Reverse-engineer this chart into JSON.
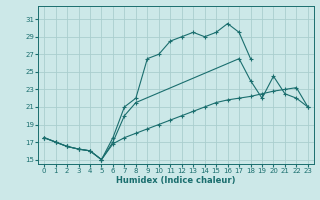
{
  "xlabel": "Humidex (Indice chaleur)",
  "ylabel": "",
  "bg_color": "#cce8e8",
  "grid_color": "#aacece",
  "line_color": "#1a6e6e",
  "xlim": [
    -0.5,
    23.5
  ],
  "ylim": [
    14.5,
    32.5
  ],
  "xticks": [
    0,
    1,
    2,
    3,
    4,
    5,
    6,
    7,
    8,
    9,
    10,
    11,
    12,
    13,
    14,
    15,
    16,
    17,
    18,
    19,
    20,
    21,
    22,
    23
  ],
  "yticks": [
    15,
    17,
    19,
    21,
    23,
    25,
    27,
    29,
    31
  ],
  "line1_x": [
    0,
    1,
    2,
    3,
    4,
    5,
    6,
    7,
    8,
    9,
    10,
    11,
    12,
    13,
    14,
    15,
    16,
    17,
    18,
    19,
    20,
    21,
    22,
    23
  ],
  "line1_y": [
    17.5,
    17.0,
    16.5,
    16.2,
    16.0,
    15.0,
    16.8,
    17.5,
    18.0,
    18.5,
    19.0,
    19.5,
    20.0,
    20.5,
    21.0,
    21.5,
    21.8,
    22.0,
    22.2,
    22.5,
    22.8,
    23.0,
    23.2,
    21.0
  ],
  "line2_x": [
    0,
    1,
    2,
    3,
    4,
    5,
    6,
    7,
    8,
    9,
    10,
    11,
    12,
    13,
    14,
    15,
    16,
    17,
    18
  ],
  "line2_y": [
    17.5,
    17.0,
    16.5,
    16.2,
    16.0,
    15.0,
    17.5,
    21.0,
    22.0,
    26.5,
    27.0,
    28.5,
    29.0,
    29.5,
    29.0,
    29.5,
    30.5,
    29.5,
    26.5
  ],
  "line3_x": [
    0,
    1,
    2,
    3,
    4,
    5,
    6,
    7,
    8,
    17,
    18,
    19,
    20,
    21,
    22,
    23
  ],
  "line3_y": [
    17.5,
    17.0,
    16.5,
    16.2,
    16.0,
    15.0,
    17.0,
    20.0,
    21.5,
    26.5,
    24.0,
    22.0,
    24.5,
    22.5,
    22.0,
    21.0
  ]
}
